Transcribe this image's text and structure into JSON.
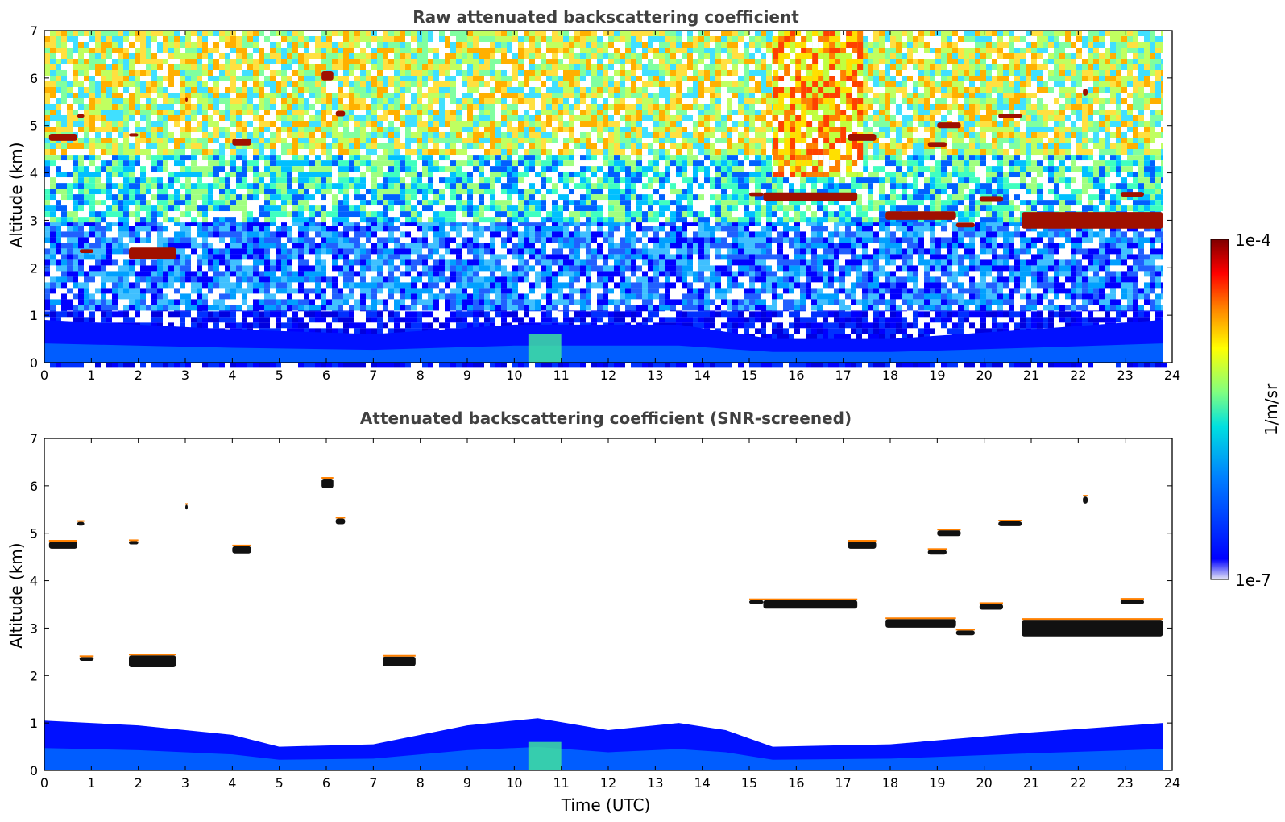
{
  "chart_data": [
    {
      "type": "heatmap",
      "title": "Raw attenuated backscattering coefficient",
      "xlabel": "",
      "ylabel": "Altitude (km)",
      "xlim": [
        0,
        24
      ],
      "ylim": [
        0,
        7
      ],
      "xticks": [
        "0",
        "1",
        "2",
        "3",
        "4",
        "5",
        "6",
        "7",
        "8",
        "9",
        "10",
        "11",
        "12",
        "13",
        "14",
        "15",
        "16",
        "17",
        "18",
        "19",
        "20",
        "21",
        "22",
        "23",
        "24"
      ],
      "yticks": [
        "0",
        "1",
        "2",
        "3",
        "4",
        "5",
        "6",
        "7"
      ],
      "data_end_time": 23.8,
      "noise": "high",
      "boundary_layer": [
        {
          "x": 0,
          "top": 0.9
        },
        {
          "x": 4,
          "top": 0.7
        },
        {
          "x": 7,
          "top": 0.6
        },
        {
          "x": 10,
          "top": 0.8
        },
        {
          "x": 13.5,
          "top": 0.8
        },
        {
          "x": 15.5,
          "top": 0.5
        },
        {
          "x": 18,
          "top": 0.5
        },
        {
          "x": 21,
          "top": 0.7
        },
        {
          "x": 23.8,
          "top": 0.9
        }
      ],
      "clouds": [
        {
          "x0": 0.1,
          "x1": 0.7,
          "alt": 4.75,
          "thick": 0.15
        },
        {
          "x0": 0.7,
          "x1": 0.85,
          "alt": 5.2,
          "thick": 0.08
        },
        {
          "x0": 0.75,
          "x1": 1.05,
          "alt": 2.35,
          "thick": 0.08
        },
        {
          "x0": 1.8,
          "x1": 2.8,
          "alt": 2.3,
          "thick": 0.25
        },
        {
          "x0": 1.8,
          "x1": 2.0,
          "alt": 4.8,
          "thick": 0.07
        },
        {
          "x0": 3.0,
          "x1": 3.05,
          "alt": 5.55,
          "thick": 0.1
        },
        {
          "x0": 4.0,
          "x1": 4.4,
          "alt": 4.65,
          "thick": 0.15
        },
        {
          "x0": 5.9,
          "x1": 6.15,
          "alt": 6.05,
          "thick": 0.2
        },
        {
          "x0": 6.2,
          "x1": 6.4,
          "alt": 5.25,
          "thick": 0.12
        },
        {
          "x0": 15.0,
          "x1": 15.3,
          "alt": 3.55,
          "thick": 0.08
        },
        {
          "x0": 15.3,
          "x1": 17.3,
          "alt": 3.5,
          "thick": 0.18
        },
        {
          "x0": 17.1,
          "x1": 17.7,
          "alt": 4.75,
          "thick": 0.15
        },
        {
          "x0": 17.9,
          "x1": 19.4,
          "alt": 3.1,
          "thick": 0.18
        },
        {
          "x0": 18.8,
          "x1": 19.2,
          "alt": 4.6,
          "thick": 0.1
        },
        {
          "x0": 19.4,
          "x1": 19.8,
          "alt": 2.9,
          "thick": 0.1
        },
        {
          "x0": 19.0,
          "x1": 19.5,
          "alt": 5.0,
          "thick": 0.12
        },
        {
          "x0": 19.9,
          "x1": 20.4,
          "alt": 3.45,
          "thick": 0.12
        },
        {
          "x0": 20.3,
          "x1": 20.8,
          "alt": 5.2,
          "thick": 0.1
        },
        {
          "x0": 20.8,
          "x1": 23.8,
          "alt": 3.0,
          "thick": 0.35
        },
        {
          "x0": 22.1,
          "x1": 22.2,
          "alt": 5.7,
          "thick": 0.15
        },
        {
          "x0": 22.9,
          "x1": 23.4,
          "alt": 3.55,
          "thick": 0.1
        }
      ]
    },
    {
      "type": "heatmap",
      "title": "Attenuated backscattering coefficient (SNR-screened)",
      "xlabel": "Time (UTC)",
      "ylabel": "Altitude (km)",
      "xlim": [
        0,
        24
      ],
      "ylim": [
        0,
        7
      ],
      "xticks": [
        "0",
        "1",
        "2",
        "3",
        "4",
        "5",
        "6",
        "7",
        "8",
        "9",
        "10",
        "11",
        "12",
        "13",
        "14",
        "15",
        "16",
        "17",
        "18",
        "19",
        "20",
        "21",
        "22",
        "23",
        "24"
      ],
      "yticks": [
        "0",
        "1",
        "2",
        "3",
        "4",
        "5",
        "6",
        "7"
      ],
      "data_end_time": 23.8,
      "noise": "screened",
      "boundary_layer": [
        {
          "x": 0,
          "top": 1.05
        },
        {
          "x": 2,
          "top": 0.95
        },
        {
          "x": 4,
          "top": 0.75
        },
        {
          "x": 5,
          "top": 0.5
        },
        {
          "x": 7,
          "top": 0.55
        },
        {
          "x": 9,
          "top": 0.95
        },
        {
          "x": 10.5,
          "top": 1.1
        },
        {
          "x": 12,
          "top": 0.85
        },
        {
          "x": 13.5,
          "top": 1.0
        },
        {
          "x": 14.5,
          "top": 0.85
        },
        {
          "x": 15.5,
          "top": 0.5
        },
        {
          "x": 18,
          "top": 0.55
        },
        {
          "x": 21,
          "top": 0.8
        },
        {
          "x": 23.8,
          "top": 1.0
        }
      ],
      "clouds": [
        {
          "x0": 0.1,
          "x1": 0.7,
          "alt": 4.75,
          "thick": 0.15
        },
        {
          "x0": 0.7,
          "x1": 0.85,
          "alt": 5.2,
          "thick": 0.08
        },
        {
          "x0": 0.75,
          "x1": 1.05,
          "alt": 2.35,
          "thick": 0.08
        },
        {
          "x0": 1.8,
          "x1": 2.8,
          "alt": 2.3,
          "thick": 0.25
        },
        {
          "x0": 1.8,
          "x1": 2.0,
          "alt": 4.8,
          "thick": 0.07
        },
        {
          "x0": 3.0,
          "x1": 3.05,
          "alt": 5.55,
          "thick": 0.1
        },
        {
          "x0": 4.0,
          "x1": 4.4,
          "alt": 4.65,
          "thick": 0.15
        },
        {
          "x0": 5.9,
          "x1": 6.15,
          "alt": 6.05,
          "thick": 0.2
        },
        {
          "x0": 6.2,
          "x1": 6.4,
          "alt": 5.25,
          "thick": 0.12
        },
        {
          "x0": 7.2,
          "x1": 7.9,
          "alt": 2.3,
          "thick": 0.2
        },
        {
          "x0": 15.0,
          "x1": 15.3,
          "alt": 3.55,
          "thick": 0.08
        },
        {
          "x0": 15.3,
          "x1": 17.3,
          "alt": 3.5,
          "thick": 0.18
        },
        {
          "x0": 17.1,
          "x1": 17.7,
          "alt": 4.75,
          "thick": 0.15
        },
        {
          "x0": 17.9,
          "x1": 19.4,
          "alt": 3.1,
          "thick": 0.18
        },
        {
          "x0": 18.8,
          "x1": 19.2,
          "alt": 4.6,
          "thick": 0.1
        },
        {
          "x0": 19.4,
          "x1": 19.8,
          "alt": 2.9,
          "thick": 0.1
        },
        {
          "x0": 19.0,
          "x1": 19.5,
          "alt": 5.0,
          "thick": 0.12
        },
        {
          "x0": 19.9,
          "x1": 20.4,
          "alt": 3.45,
          "thick": 0.12
        },
        {
          "x0": 20.3,
          "x1": 20.8,
          "alt": 5.2,
          "thick": 0.1
        },
        {
          "x0": 20.8,
          "x1": 23.8,
          "alt": 3.0,
          "thick": 0.35
        },
        {
          "x0": 22.1,
          "x1": 22.2,
          "alt": 5.7,
          "thick": 0.15
        },
        {
          "x0": 22.9,
          "x1": 23.4,
          "alt": 3.55,
          "thick": 0.1
        }
      ]
    }
  ],
  "colorbar": {
    "label": "1/m/sr",
    "max_label": "1e-4",
    "min_label": "1e-7",
    "scale": "log",
    "range": [
      1e-07,
      0.0001
    ],
    "colormap": [
      "#e6e6f5",
      "#0000ff",
      "#0080ff",
      "#00e0e0",
      "#80ff80",
      "#ffff00",
      "#ff8000",
      "#ff0000",
      "#800000"
    ]
  }
}
